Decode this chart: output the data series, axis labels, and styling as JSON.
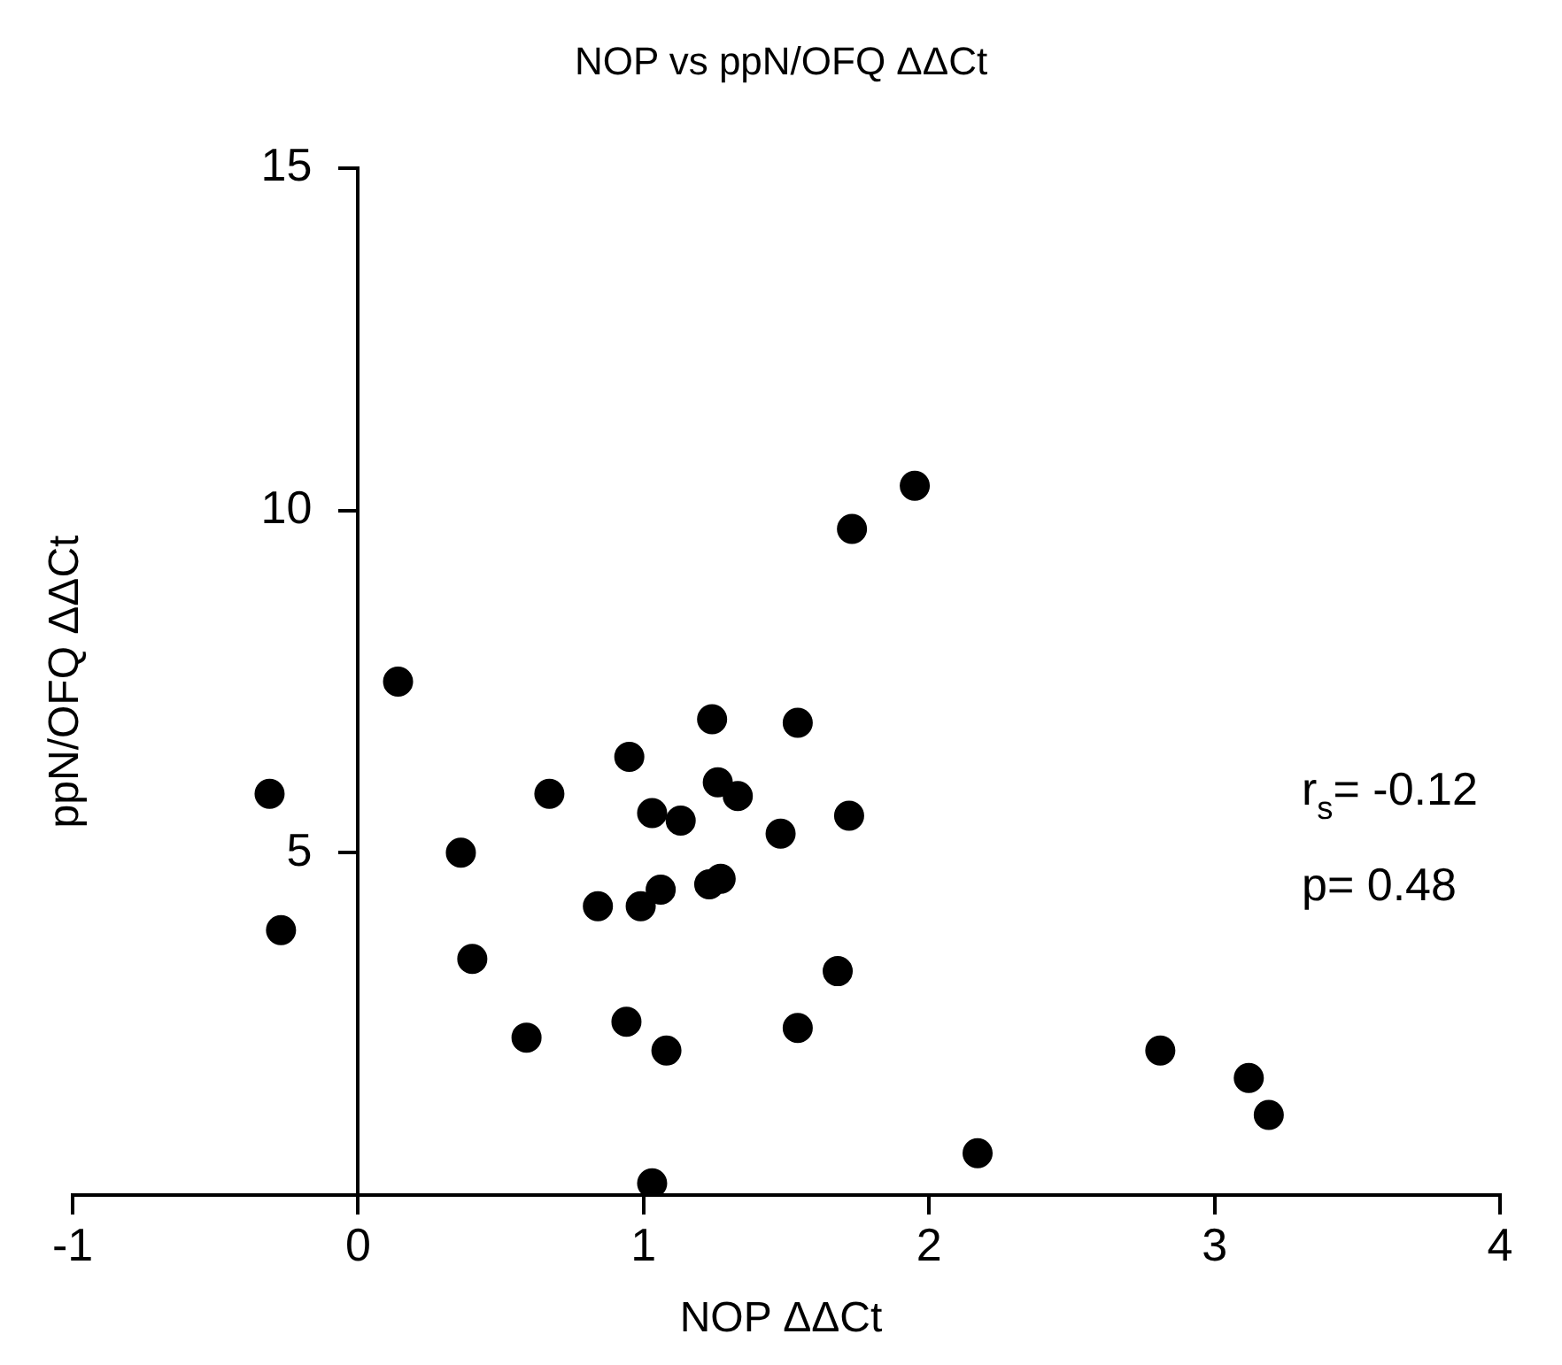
{
  "chart_data": {
    "type": "scatter",
    "title": "NOP vs ppN/OFQ ΔΔCt",
    "xlabel": "NOP ΔΔCt",
    "ylabel": "ppN/OFQ ΔΔCt",
    "annotations": [
      "r$_{s}$= -0.12",
      "p= 0.48"
    ],
    "x": [
      -0.31,
      -0.27,
      0.14,
      0.36,
      0.4,
      0.67,
      0.59,
      0.95,
      1.03,
      1.13,
      0.84,
      0.99,
      1.06,
      0.94,
      1.08,
      1.03,
      1.95,
      1.73,
      1.24,
      1.54,
      1.26,
      1.33,
      1.48,
      1.72,
      1.23,
      1.27,
      1.68,
      1.54,
      2.17,
      2.81,
      3.12,
      3.19
    ],
    "series": [
      {
        "color": "#000000",
        "values": [
          5.86,
          3.87,
          7.5,
          5.0,
          3.45,
          5.86,
          2.3,
          6.4,
          5.58,
          5.47,
          4.22,
          4.22,
          4.46,
          2.53,
          2.11,
          0.17,
          10.36,
          9.73,
          6.95,
          6.9,
          6.03,
          5.83,
          5.28,
          5.54,
          4.54,
          4.62,
          3.27,
          2.44,
          0.61,
          2.11,
          1.71,
          1.17
        ]
      }
    ],
    "xlim": [
      -1,
      4
    ],
    "xticks": [
      -1,
      0,
      1,
      2,
      3,
      4
    ],
    "ylim": [
      0,
      15
    ],
    "yticks": [
      5,
      10,
      15
    ],
    "grid": false,
    "legend": false,
    "marker": "circle"
  }
}
